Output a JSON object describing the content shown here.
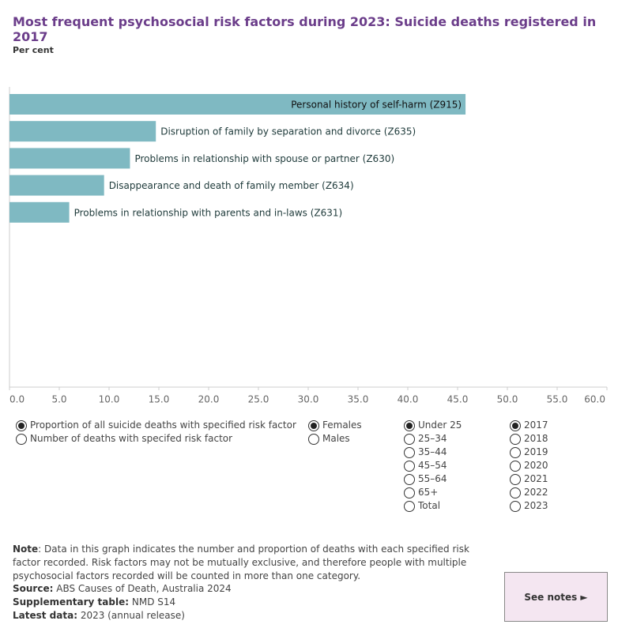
{
  "chart_data": {
    "type": "barh",
    "title": "Most frequent psychosocial risk factors during 2023: Suicide deaths registered in 2017",
    "subtitle": "Per cent",
    "categories": [
      "Personal history of self-harm (Z915)",
      "Disruption of family by separation and divorce (Z635)",
      "Problems in relationship with spouse or partner (Z630)",
      "Disappearance and death of family member (Z634)",
      "Problems in relationship with parents and in-laws (Z631)"
    ],
    "values": [
      45.8,
      14.7,
      12.1,
      9.5,
      6.0
    ],
    "color": "#7fb9c2",
    "xlim": [
      0,
      60
    ],
    "xticks": [
      {
        "value": 0,
        "label": "0.0"
      },
      {
        "value": 5,
        "label": "5.0"
      },
      {
        "value": 10,
        "label": "10.0"
      },
      {
        "value": 15,
        "label": "15.0"
      },
      {
        "value": 20,
        "label": "20.0"
      },
      {
        "value": 25,
        "label": "25.0"
      },
      {
        "value": 30,
        "label": "30.0"
      },
      {
        "value": 35,
        "label": "35.0"
      },
      {
        "value": 40,
        "label": "40.0"
      },
      {
        "value": 45,
        "label": "45.0"
      },
      {
        "value": 50,
        "label": "50.0"
      },
      {
        "value": 55,
        "label": "55.0"
      },
      {
        "value": 60,
        "label": "60.0"
      }
    ]
  },
  "controls": [
    {
      "options": [
        "Proportion of all suicide deaths with specified risk factor",
        "Number of deaths with specifed risk factor"
      ],
      "selected": 0
    },
    {
      "options": [
        "Females",
        "Males"
      ],
      "selected": 0
    },
    {
      "options": [
        "Under 25",
        "25–34",
        "35–44",
        "45–54",
        "55–64",
        "65+",
        "Total"
      ],
      "selected": 0
    },
    {
      "options": [
        "2017",
        "2018",
        "2019",
        "2020",
        "2021",
        "2022",
        "2023"
      ],
      "selected": 0
    }
  ],
  "notes": {
    "note_label": "Note",
    "note_text": ": Data in this graph indicates the number and proportion of deaths with each specified risk factor recorded. Risk factors may not be mutually exclusive, and therefore people with multiple psychosocial factors recorded will be counted in more than one category.",
    "source_label": "Source:",
    "source_text": "ABS Causes of Death, Australia 2024",
    "supp_label": "Supplementary table:",
    "supp_text": "NMD S14",
    "latest_label": "Latest data:",
    "latest_text": "2023 (annual release)"
  },
  "button": "See notes ►"
}
